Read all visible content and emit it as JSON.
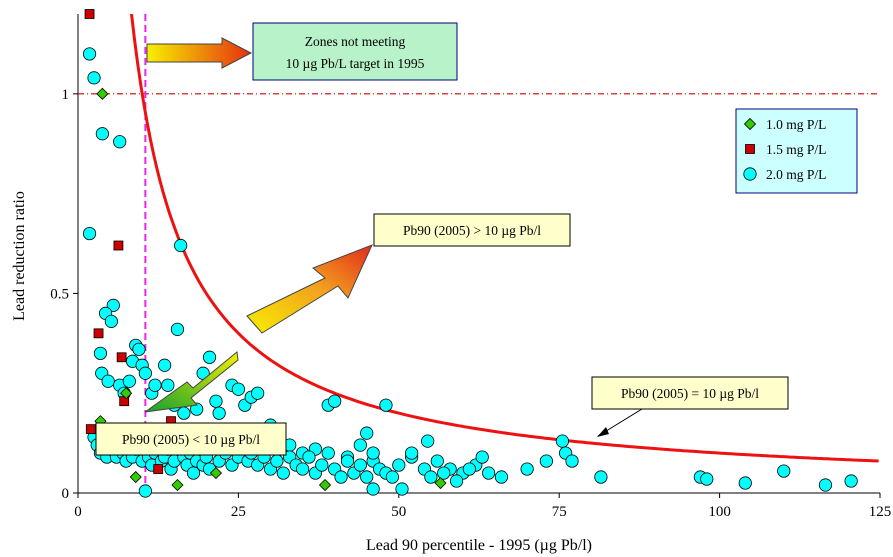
{
  "chart_data": {
    "type": "scatter",
    "xlabel": "Lead 90 percentile - 1995 (µg Pb/l)",
    "ylabel": "Lead reduction ratio",
    "xlim": [
      0,
      125
    ],
    "ylim": [
      0,
      1.2
    ],
    "x_ticks": [
      0,
      25,
      50,
      75,
      100,
      125
    ],
    "y_ticks": [
      0,
      0.5,
      1
    ],
    "x_tick_labels": [
      "0",
      "25",
      "50",
      "75",
      "100",
      "125"
    ],
    "y_tick_labels": [
      "0",
      "0.5",
      "1"
    ],
    "grid": false,
    "legend_position": "top-right",
    "reference_lines": {
      "horizontal_y": 1,
      "vertical_x": 10.5,
      "curve_target": 10
    },
    "series": [
      {
        "name": "1.0 mg P/L",
        "marker": "diamond",
        "color": "#33cc00",
        "points": [
          [
            3.8,
            1.0
          ],
          [
            3.5,
            0.18
          ],
          [
            4.2,
            0.12
          ],
          [
            7.5,
            0.25
          ],
          [
            9.0,
            0.04
          ],
          [
            15.5,
            0.02
          ],
          [
            21.5,
            0.05
          ],
          [
            38.5,
            0.02
          ],
          [
            56.5,
            0.025
          ]
        ]
      },
      {
        "name": "1.5 mg P/L",
        "marker": "square",
        "color": "#cc0000",
        "points": [
          [
            1.8,
            1.2
          ],
          [
            6.3,
            0.62
          ],
          [
            3.2,
            0.4
          ],
          [
            6.8,
            0.34
          ],
          [
            2.0,
            0.16
          ],
          [
            7.2,
            0.23
          ],
          [
            12.5,
            0.06
          ],
          [
            13.5,
            0.12
          ],
          [
            14.5,
            0.18
          ]
        ]
      },
      {
        "name": "2.0 mg P/L",
        "marker": "circle",
        "color": "#00ffff",
        "points": [
          [
            1.8,
            1.1
          ],
          [
            2.5,
            1.04
          ],
          [
            3.8,
            0.9
          ],
          [
            6.5,
            0.88
          ],
          [
            1.8,
            0.65
          ],
          [
            5.5,
            0.47
          ],
          [
            4.3,
            0.45
          ],
          [
            5.2,
            0.43
          ],
          [
            3.5,
            0.35
          ],
          [
            3.7,
            0.3
          ],
          [
            4.7,
            0.28
          ],
          [
            6.5,
            0.27
          ],
          [
            7.2,
            0.25
          ],
          [
            8.0,
            0.28
          ],
          [
            9.0,
            0.37
          ],
          [
            8.5,
            0.33
          ],
          [
            9.5,
            0.36
          ],
          [
            10.0,
            0.32
          ],
          [
            10.5,
            0.3
          ],
          [
            11.5,
            0.25
          ],
          [
            12.0,
            0.27
          ],
          [
            13.5,
            0.32
          ],
          [
            14.0,
            0.27
          ],
          [
            15.0,
            0.22
          ],
          [
            16.0,
            0.62
          ],
          [
            15.5,
            0.41
          ],
          [
            15.0,
            0.23
          ],
          [
            16.5,
            0.2
          ],
          [
            17.0,
            0.16
          ],
          [
            18.0,
            0.14
          ],
          [
            18.5,
            0.21
          ],
          [
            19.5,
            0.3
          ],
          [
            20.5,
            0.34
          ],
          [
            21.5,
            0.23
          ],
          [
            22.0,
            0.2
          ],
          [
            23.0,
            0.16
          ],
          [
            24.0,
            0.27
          ],
          [
            25.0,
            0.26
          ],
          [
            26.0,
            0.22
          ],
          [
            27.0,
            0.24
          ],
          [
            28.0,
            0.25
          ],
          [
            29.0,
            0.14
          ],
          [
            30.0,
            0.17
          ],
          [
            31.5,
            0.11
          ],
          [
            33.0,
            0.12
          ],
          [
            35.0,
            0.1
          ],
          [
            37.0,
            0.11
          ],
          [
            39.0,
            0.22
          ],
          [
            40.0,
            0.23
          ],
          [
            42.0,
            0.09
          ],
          [
            44.0,
            0.12
          ],
          [
            45.0,
            0.15
          ],
          [
            46.0,
            0.08
          ],
          [
            48.0,
            0.22
          ],
          [
            50.0,
            0.07
          ],
          [
            52.0,
            0.09
          ],
          [
            54.0,
            0.06
          ],
          [
            56.0,
            0.08
          ],
          [
            58.0,
            0.06
          ],
          [
            60.0,
            0.05
          ],
          [
            62.0,
            0.07
          ],
          [
            64.0,
            0.05
          ],
          [
            66.0,
            0.04
          ],
          [
            70.0,
            0.06
          ],
          [
            73.0,
            0.08
          ],
          [
            75.5,
            0.13
          ],
          [
            76.0,
            0.1
          ],
          [
            77.0,
            0.08
          ],
          [
            81.5,
            0.04
          ],
          [
            97.0,
            0.04
          ],
          [
            98.0,
            0.035
          ],
          [
            104.0,
            0.025
          ],
          [
            110.0,
            0.055
          ],
          [
            116.5,
            0.02
          ],
          [
            120.5,
            0.03
          ],
          [
            2.5,
            0.14
          ],
          [
            3.0,
            0.12
          ],
          [
            3.5,
            0.1
          ],
          [
            4.5,
            0.09
          ],
          [
            5.0,
            0.11
          ],
          [
            5.5,
            0.14
          ],
          [
            6.0,
            0.09
          ],
          [
            6.5,
            0.12
          ],
          [
            7.0,
            0.1
          ],
          [
            7.5,
            0.08
          ],
          [
            8.0,
            0.13
          ],
          [
            8.5,
            0.09
          ],
          [
            9.0,
            0.11
          ],
          [
            9.5,
            0.14
          ],
          [
            10.0,
            0.08
          ],
          [
            10.5,
            0.12
          ],
          [
            11.0,
            0.09
          ],
          [
            11.5,
            0.07
          ],
          [
            12.0,
            0.1
          ],
          [
            12.5,
            0.13
          ],
          [
            13.0,
            0.08
          ],
          [
            13.5,
            0.09
          ],
          [
            14.0,
            0.11
          ],
          [
            14.5,
            0.06
          ],
          [
            15.0,
            0.08
          ],
          [
            16.0,
            0.12
          ],
          [
            16.5,
            0.09
          ],
          [
            17.0,
            0.07
          ],
          [
            17.5,
            0.1
          ],
          [
            18.0,
            0.05
          ],
          [
            18.5,
            0.08
          ],
          [
            19.0,
            0.11
          ],
          [
            19.5,
            0.07
          ],
          [
            20.0,
            0.09
          ],
          [
            20.5,
            0.06
          ],
          [
            21.0,
            0.12
          ],
          [
            22.0,
            0.08
          ],
          [
            23.0,
            0.1
          ],
          [
            24.0,
            0.07
          ],
          [
            25.0,
            0.09
          ],
          [
            25.5,
            0.12
          ],
          [
            26.5,
            0.08
          ],
          [
            27.0,
            0.1
          ],
          [
            28.0,
            0.07
          ],
          [
            29.0,
            0.09
          ],
          [
            30.0,
            0.06
          ],
          [
            31.0,
            0.08
          ],
          [
            32.0,
            0.05
          ],
          [
            33.0,
            0.09
          ],
          [
            34.0,
            0.07
          ],
          [
            35.0,
            0.06
          ],
          [
            36.0,
            0.09
          ],
          [
            37.0,
            0.05
          ],
          [
            38.0,
            0.07
          ],
          [
            39.0,
            0.1
          ],
          [
            40.0,
            0.06
          ],
          [
            41.0,
            0.04
          ],
          [
            42.0,
            0.08
          ],
          [
            43.0,
            0.05
          ],
          [
            44.0,
            0.07
          ],
          [
            45.0,
            0.04
          ],
          [
            46.0,
            0.1
          ],
          [
            47.0,
            0.06
          ],
          [
            48.0,
            0.05
          ],
          [
            49.0,
            0.04
          ],
          [
            50.5,
            0.01
          ],
          [
            55.0,
            0.04
          ],
          [
            57.0,
            0.05
          ],
          [
            59.0,
            0.03
          ],
          [
            61.0,
            0.06
          ],
          [
            63.0,
            0.09
          ],
          [
            10.5,
            0.005
          ],
          [
            46.0,
            0.01
          ],
          [
            52.0,
            0.1
          ],
          [
            54.5,
            0.13
          ]
        ]
      }
    ],
    "curve_label": "Pb90 (2005)  = 10 µg Pb/l",
    "annotations": {
      "zones": [
        "Zones not meeting",
        "10 µg Pb/L target in 1995"
      ],
      "above": "Pb90 (2005)  > 10 µg Pb/l",
      "below": "Pb90 (2005) < 10 µg Pb/l"
    }
  }
}
